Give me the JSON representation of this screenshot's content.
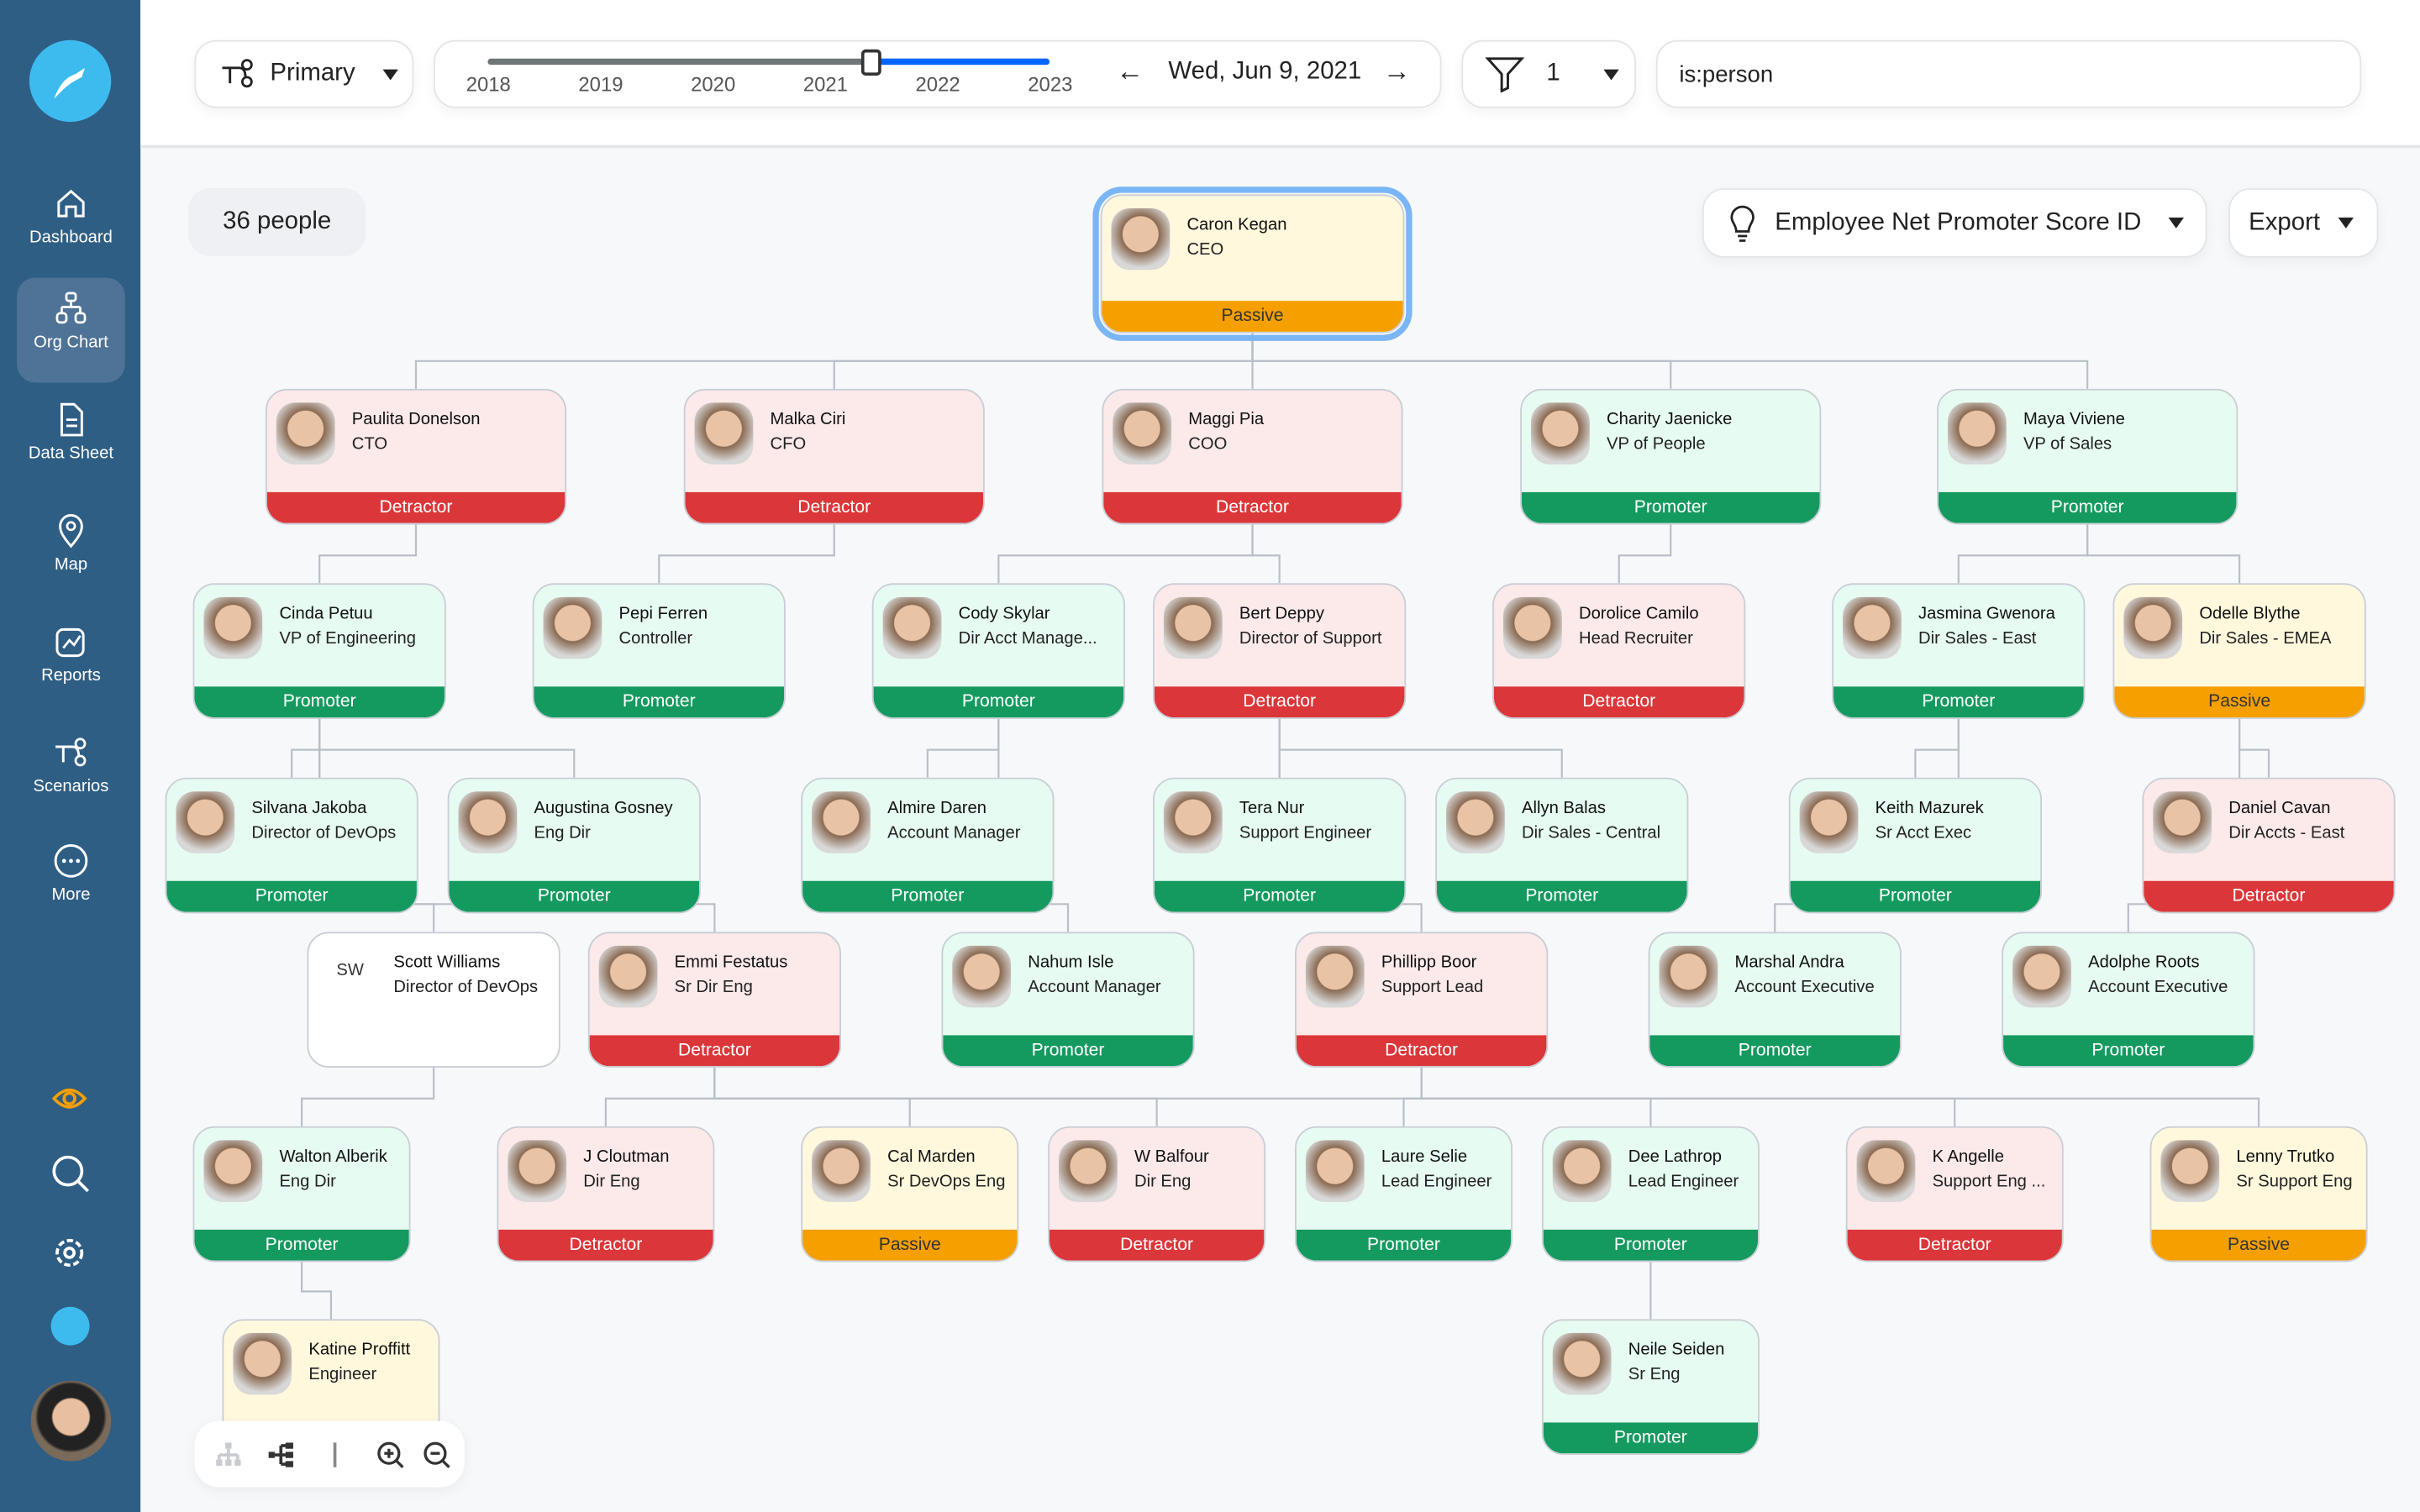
{
  "colors": {
    "sidebar": "#2f5e85",
    "promoter": "#149a5f",
    "detractor": "#db3639",
    "passive": "#f59f00",
    "slider": "#0066ff"
  },
  "sidebar": {
    "items": [
      {
        "label": "Dashboard",
        "icon": "home-icon"
      },
      {
        "label": "Org Chart",
        "icon": "org-chart-icon",
        "active": true
      },
      {
        "label": "Data Sheet",
        "icon": "document-icon"
      },
      {
        "label": "Map",
        "icon": "map-pin-icon"
      },
      {
        "label": "Reports",
        "icon": "chart-icon"
      },
      {
        "label": "Scenarios",
        "icon": "scenarios-icon"
      },
      {
        "label": "More",
        "icon": "more-icon"
      }
    ],
    "bottom_icons": [
      "eye-icon",
      "search-icon",
      "gear-icon",
      "logo-icon",
      "user-avatar"
    ]
  },
  "topbar": {
    "view_select": "Primary",
    "timeline": {
      "years": [
        "2018",
        "2019",
        "2020",
        "2021",
        "2022",
        "2023"
      ],
      "position_year": 2021.45
    },
    "date": "Wed, Jun 9, 2021",
    "filter_count": "1",
    "search_value": "is:person"
  },
  "toolbar": {
    "people_count": "36 people",
    "color_by": "Employee Net Promoter Score ID",
    "export": "Export"
  },
  "people": [
    {
      "id": "caron",
      "name": "Caron Kegan",
      "title": "CEO",
      "status": "Passive",
      "selected": true
    },
    {
      "id": "paulita",
      "name": "Paulita Donelson",
      "title": "CTO",
      "status": "Detractor"
    },
    {
      "id": "malka",
      "name": "Malka Ciri",
      "title": "CFO",
      "status": "Detractor"
    },
    {
      "id": "maggi",
      "name": "Maggi Pia",
      "title": "COO",
      "status": "Detractor"
    },
    {
      "id": "charity",
      "name": "Charity Jaenicke",
      "title": "VP of People",
      "status": "Promoter"
    },
    {
      "id": "maya",
      "name": "Maya Viviene",
      "title": "VP of Sales",
      "status": "Promoter"
    },
    {
      "id": "cinda",
      "name": "Cinda Petuu",
      "title": "VP of Engineering",
      "status": "Promoter"
    },
    {
      "id": "pepi",
      "name": "Pepi Ferren",
      "title": "Controller",
      "status": "Promoter"
    },
    {
      "id": "cody",
      "name": "Cody Skylar",
      "title": "Dir Acct Manage...",
      "status": "Promoter"
    },
    {
      "id": "bert",
      "name": "Bert Deppy",
      "title": "Director of Support",
      "status": "Detractor"
    },
    {
      "id": "dorolice",
      "name": "Dorolice Camilo",
      "title": "Head Recruiter",
      "status": "Detractor"
    },
    {
      "id": "jasmina",
      "name": "Jasmina Gwenora",
      "title": "Dir Sales - East",
      "status": "Promoter"
    },
    {
      "id": "odelle",
      "name": "Odelle Blythe",
      "title": "Dir Sales - EMEA",
      "status": "Passive"
    },
    {
      "id": "silvana",
      "name": "Silvana Jakoba",
      "title": "Director of DevOps",
      "status": "Promoter"
    },
    {
      "id": "augustina",
      "name": "Augustina Gosney",
      "title": "Eng Dir",
      "status": "Promoter"
    },
    {
      "id": "almire",
      "name": "Almire Daren",
      "title": "Account Manager",
      "status": "Promoter"
    },
    {
      "id": "tera",
      "name": "Tera Nur",
      "title": "Support Engineer",
      "status": "Promoter"
    },
    {
      "id": "allyn",
      "name": "Allyn Balas",
      "title": "Dir Sales - Central",
      "status": "Promoter"
    },
    {
      "id": "keith",
      "name": "Keith Mazurek",
      "title": "Sr Acct Exec",
      "status": "Promoter"
    },
    {
      "id": "daniel",
      "name": "Daniel Cavan",
      "title": "Dir Accts - East",
      "status": "Detractor"
    },
    {
      "id": "scott",
      "name": "Scott Williams",
      "title": "Director of DevOps",
      "status": "None",
      "initials": "SW"
    },
    {
      "id": "emmi",
      "name": "Emmi Festatus",
      "title": "Sr Dir Eng",
      "status": "Detractor"
    },
    {
      "id": "nahum",
      "name": "Nahum Isle",
      "title": "Account Manager",
      "status": "Promoter"
    },
    {
      "id": "phillipp",
      "name": "Phillipp Boor",
      "title": "Support Lead",
      "status": "Detractor"
    },
    {
      "id": "marshal",
      "name": "Marshal Andra",
      "title": "Account Executive",
      "status": "Promoter"
    },
    {
      "id": "adolphe",
      "name": "Adolphe Roots",
      "title": "Account Executive",
      "status": "Promoter"
    },
    {
      "id": "walton",
      "name": "Walton Alberik",
      "title": "Eng Dir",
      "status": "Promoter"
    },
    {
      "id": "jcloutman",
      "name": "J Cloutman",
      "title": "Dir Eng",
      "status": "Detractor"
    },
    {
      "id": "cal",
      "name": "Cal Marden",
      "title": "Sr DevOps Eng",
      "status": "Passive"
    },
    {
      "id": "wbalfour",
      "name": "W Balfour",
      "title": "Dir Eng",
      "status": "Detractor"
    },
    {
      "id": "laure",
      "name": "Laure Selie",
      "title": "Lead Engineer",
      "status": "Promoter"
    },
    {
      "id": "dee",
      "name": "Dee Lathrop",
      "title": "Lead Engineer",
      "status": "Promoter"
    },
    {
      "id": "kangelle",
      "name": "K Angelle",
      "title": "Support Eng ...",
      "status": "Detractor"
    },
    {
      "id": "lenny",
      "name": "Lenny Trutko",
      "title": "Sr Support Eng",
      "status": "Passive"
    },
    {
      "id": "katine",
      "name": "Katine Proffitt",
      "title": "Engineer",
      "status": "Passive"
    },
    {
      "id": "neile",
      "name": "Neile Seiden",
      "title": "Sr Eng",
      "status": "Promoter"
    }
  ]
}
